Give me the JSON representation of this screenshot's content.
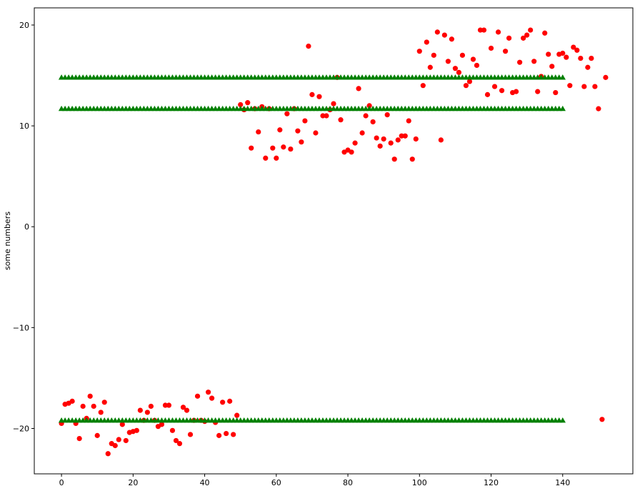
{
  "chart_data": {
    "type": "scatter",
    "title": "",
    "xlabel": "",
    "ylabel": "some numbers",
    "xlim": [
      -7.6,
      159.6
    ],
    "ylim": [
      -24.5,
      21.7
    ],
    "xticks": [
      0,
      20,
      40,
      60,
      80,
      100,
      120,
      140
    ],
    "yticks": [
      -20,
      -10,
      0,
      10,
      20
    ],
    "grid": false,
    "legend": "none",
    "series": [
      {
        "marker": "circle",
        "color": "#ff0000",
        "x": [
          0,
          1,
          2,
          3,
          4,
          5,
          6,
          7,
          8,
          9,
          10,
          11,
          12,
          13,
          14,
          15,
          16,
          17,
          18,
          19,
          20,
          21,
          22,
          23,
          24,
          25,
          26,
          27,
          28,
          29,
          30,
          31,
          32,
          33,
          34,
          35,
          36,
          37,
          38,
          39,
          40,
          41,
          42,
          43,
          44,
          45,
          46,
          47,
          48,
          49,
          50,
          51,
          52,
          53,
          54,
          55,
          56,
          57,
          58,
          59,
          60,
          61,
          62,
          63,
          64,
          65,
          66,
          67,
          68,
          69,
          70,
          71,
          72,
          73,
          74,
          75,
          76,
          77,
          78,
          79,
          80,
          81,
          82,
          83,
          84,
          85,
          86,
          87,
          88,
          89,
          90,
          91,
          92,
          93,
          94,
          95,
          96,
          97,
          98,
          99,
          100,
          101,
          102,
          103,
          104,
          105,
          106,
          107,
          108,
          109,
          110,
          111,
          112,
          113,
          114,
          115,
          116,
          117,
          118,
          119,
          120,
          121,
          122,
          123,
          124,
          125,
          126,
          127,
          128,
          129,
          130,
          131,
          132,
          133,
          134,
          135,
          136,
          137,
          138,
          139,
          140,
          141,
          142,
          143,
          144,
          145,
          146,
          147,
          148,
          149,
          150,
          151,
          152
        ],
        "y": [
          -19.5,
          -17.6,
          -17.5,
          -17.3,
          -19.5,
          -21.0,
          -17.8,
          -19.0,
          -16.8,
          -17.8,
          -20.7,
          -18.4,
          -17.4,
          -22.5,
          -21.5,
          -21.7,
          -21.1,
          -19.6,
          -21.2,
          -20.4,
          -20.3,
          -20.2,
          -18.2,
          -19.2,
          -18.4,
          -17.8,
          -19.2,
          -19.8,
          -19.6,
          -17.7,
          -17.7,
          -20.2,
          -21.2,
          -21.5,
          -17.9,
          -18.2,
          -20.6,
          -19.2,
          -16.8,
          -19.2,
          -19.3,
          -16.4,
          -17.0,
          -19.4,
          -20.7,
          -17.4,
          -20.5,
          -17.3,
          -20.6,
          -18.7,
          12.1,
          11.6,
          12.3,
          7.8,
          11.7,
          9.4,
          11.9,
          6.8,
          11.7,
          7.8,
          6.8,
          9.6,
          7.9,
          11.2,
          7.7,
          11.7,
          9.5,
          8.4,
          10.5,
          17.9,
          13.1,
          9.3,
          12.9,
          11.0,
          11.0,
          11.6,
          12.2,
          14.8,
          10.6,
          7.4,
          7.6,
          7.4,
          8.3,
          13.7,
          9.3,
          11.0,
          12.0,
          10.4,
          8.8,
          8.0,
          8.7,
          11.1,
          8.3,
          6.7,
          8.6,
          9.0,
          9.0,
          10.5,
          6.7,
          8.7,
          17.4,
          14.0,
          18.3,
          15.8,
          17.0,
          19.3,
          8.6,
          19.0,
          16.4,
          18.6,
          15.7,
          15.3,
          17.0,
          14.0,
          14.4,
          16.6,
          16.0,
          19.5,
          19.5,
          13.1,
          17.7,
          13.9,
          19.3,
          13.5,
          17.4,
          18.7,
          13.3,
          13.4,
          16.3,
          18.7,
          19.0,
          19.5,
          16.4,
          13.4,
          14.9,
          19.2,
          17.1,
          15.9,
          13.3,
          17.1,
          17.2,
          16.8,
          14.0,
          17.8,
          17.5,
          16.7,
          13.9,
          15.8,
          16.7,
          13.9,
          11.7,
          -19.1,
          14.8
        ]
      },
      {
        "marker": "triangle",
        "color": "#008000",
        "x_range": [
          0,
          140
        ],
        "y": 14.8
      },
      {
        "marker": "triangle",
        "color": "#008000",
        "x_range": [
          0,
          140
        ],
        "y": 11.7
      },
      {
        "marker": "triangle",
        "color": "#008000",
        "x_range": [
          0,
          140
        ],
        "y": -19.2
      }
    ]
  }
}
